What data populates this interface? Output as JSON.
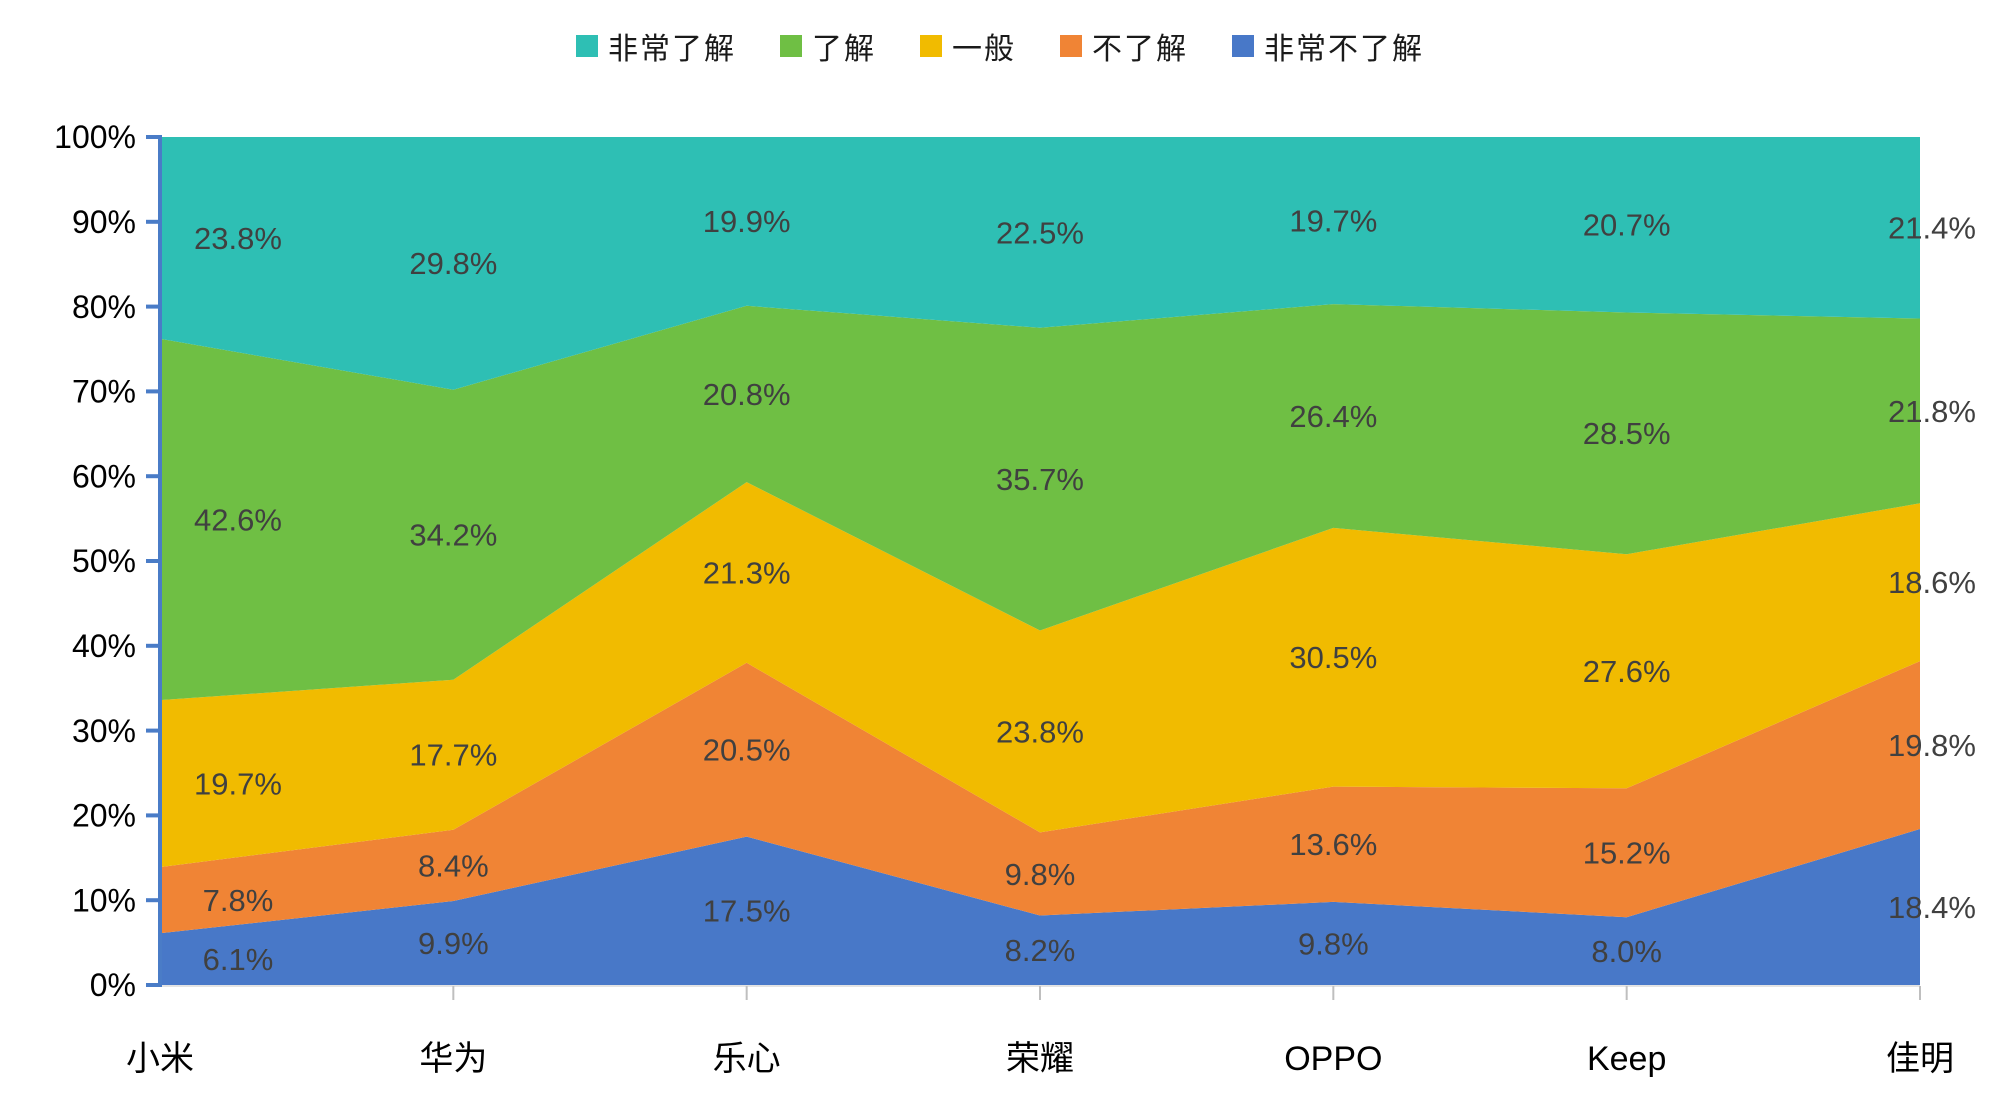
{
  "chart_data": {
    "type": "area",
    "stacked_percent": true,
    "title": "",
    "categories": [
      "小米",
      "华为",
      "乐心",
      "荣耀",
      "OPPO",
      "Keep",
      "佳明"
    ],
    "series": [
      {
        "name": "非常了解",
        "color": "#2EBFB4",
        "values": [
          23.8,
          29.8,
          19.9,
          22.5,
          19.7,
          20.7,
          21.4
        ],
        "labels": [
          "23.8%",
          "29.8%",
          "19.9%",
          "22.5%",
          "19.7%",
          "20.7%",
          "21.4%"
        ]
      },
      {
        "name": "了解",
        "color": "#6FBF44",
        "values": [
          42.6,
          34.2,
          20.8,
          35.7,
          26.4,
          28.5,
          21.8
        ],
        "labels": [
          "42.6%",
          "34.2%",
          "20.8%",
          "35.7%",
          "26.4%",
          "28.5%",
          "21.8%"
        ]
      },
      {
        "name": "一般",
        "color": "#F1BB00",
        "values": [
          19.7,
          17.7,
          21.3,
          23.8,
          30.5,
          27.6,
          18.6
        ],
        "labels": [
          "19.7%",
          "17.7%",
          "21.3%",
          "23.8%",
          "30.5%",
          "27.6%",
          "18.6%"
        ]
      },
      {
        "name": "不了解",
        "color": "#F08435",
        "values": [
          7.8,
          8.4,
          20.5,
          9.8,
          13.6,
          15.2,
          19.8
        ],
        "labels": [
          "7.8%",
          "8.4%",
          "20.5%",
          "9.8%",
          "13.6%",
          "15.2%",
          "19.8%"
        ]
      },
      {
        "name": "非常不了解",
        "color": "#4878C8",
        "values": [
          6.1,
          9.9,
          17.5,
          8.2,
          9.8,
          8.0,
          18.4
        ],
        "labels": [
          "6.1%",
          "9.9%",
          "17.5%",
          "8.2%",
          "9.8%",
          "8.0%",
          "18.4%"
        ]
      }
    ],
    "y_axis": {
      "min": 0,
      "max": 100,
      "ticks": [
        "0%",
        "10%",
        "20%",
        "30%",
        "40%",
        "50%",
        "60%",
        "70%",
        "80%",
        "90%",
        "100%"
      ]
    },
    "legend_position": "top",
    "grid": false
  },
  "styles": {
    "data_label_color": "#404040",
    "axis_text_color": "#000000",
    "y_axis_line_color": "#4A7CC7",
    "x_axis_line_color": "#E3E3E3",
    "x_tick_color": "#BFBFBF"
  }
}
